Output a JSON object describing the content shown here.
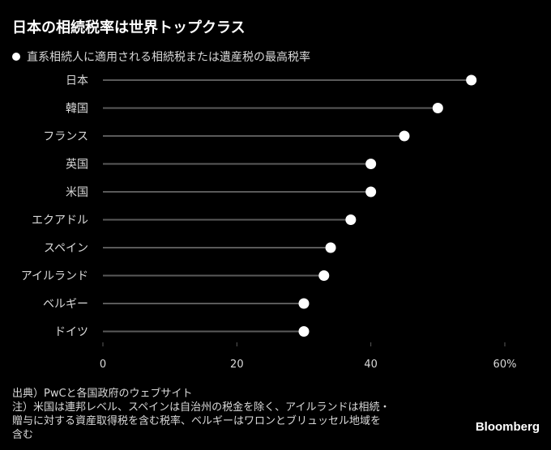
{
  "title": "日本の相続税率は世界トップクラス",
  "legend": "直系相続人に適用される相続税または遺産税の最高税率",
  "notes": [
    "出典）PwCと各国政府のウェブサイト",
    "注）米国は連邦レベル、スペインは自治州の税金を除く、アイルランドは相続・",
    "贈与に対する資産取得税を含む税率、ベルギーはワロンとブリュッセル地域を",
    "含む"
  ],
  "brand": "Bloomberg",
  "colors": {
    "background": "#000000",
    "line": "#5a5a5a",
    "dot": "#ffffff",
    "text": "#d9d9d9"
  },
  "chart_data": {
    "type": "scatter",
    "title": "日本の相続税率は世界トップクラス",
    "categories": [
      "日本",
      "韓国",
      "フランス",
      "英国",
      "米国",
      "エクアドル",
      "スペイン",
      "アイルランド",
      "ベルギー",
      "ドイツ"
    ],
    "series": [
      {
        "name": "直系相続人に適用される相続税または遺産税の最高税率",
        "values": [
          55,
          50,
          45,
          40,
          40,
          37,
          34,
          33,
          30,
          30
        ]
      }
    ],
    "xlim": [
      0,
      60
    ],
    "xticks": [
      "0",
      "20",
      "40",
      "60%"
    ],
    "grid": false,
    "legend_position": "top-left"
  }
}
